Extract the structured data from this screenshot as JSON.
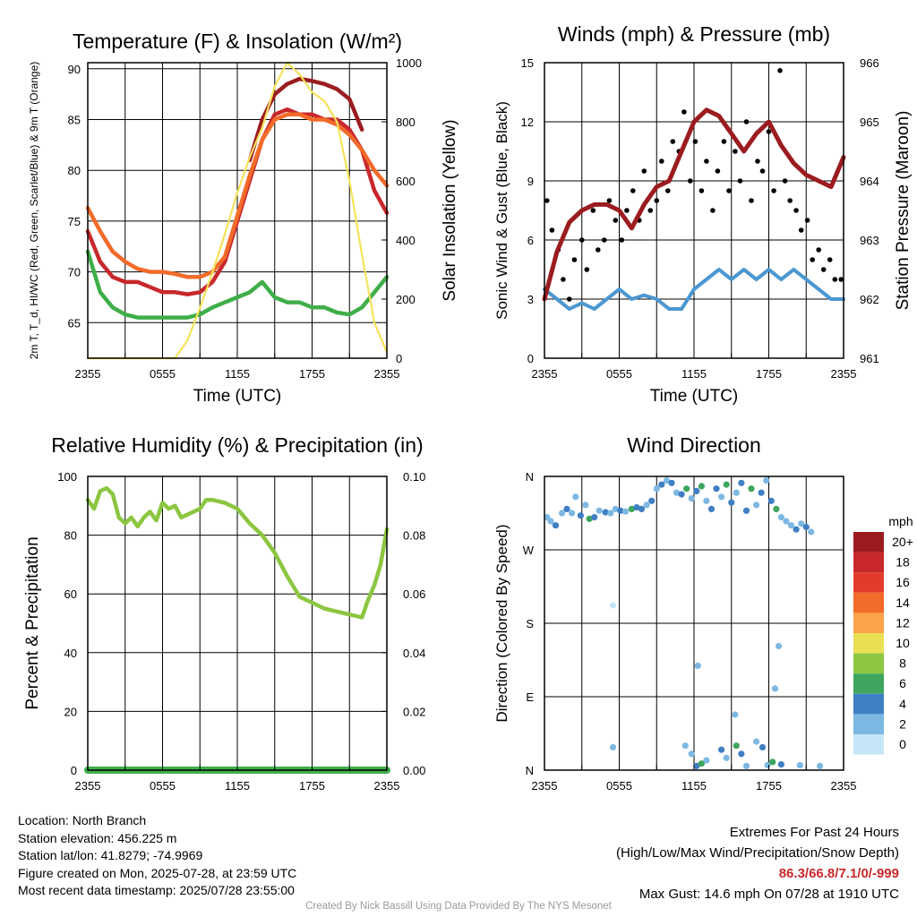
{
  "chart_data": [
    {
      "type": "line",
      "title": "Temperature (F) & Insolation (W/m²)",
      "xlabel": "Time (UTC)",
      "ylabel": "2m T, T_d, HI/WC (Red, Green, Scarlet/Blue) & 9m T (Orange)",
      "y2label": "Solar Insolation (Yellow)",
      "x_ticks": [
        "2355",
        "0555",
        "1155",
        "1755",
        "2355"
      ],
      "ylim": [
        61.5,
        90.6
      ],
      "y_ticks": [
        65,
        70,
        75,
        80,
        85,
        90
      ],
      "y2lim": [
        0,
        1000
      ],
      "y2_ticks": [
        0,
        200,
        400,
        600,
        800,
        1000
      ],
      "grid": true,
      "series": [
        {
          "name": "2m T",
          "color": "#c8282b",
          "axis": "left",
          "x": [
            0,
            1,
            2,
            3,
            4,
            5,
            6,
            7,
            8,
            9,
            10,
            11,
            12,
            13,
            14,
            15,
            16,
            17,
            18,
            19,
            20,
            21,
            22,
            23,
            24
          ],
          "y": [
            74.0,
            71.0,
            69.5,
            69.0,
            69.0,
            68.5,
            68.0,
            68.0,
            67.8,
            68.0,
            69.0,
            71.0,
            75.0,
            79.0,
            83.0,
            85.5,
            86.0,
            85.5,
            85.5,
            85.0,
            85.0,
            84.0,
            82.0,
            78.0,
            75.8
          ]
        },
        {
          "name": "HI/WC",
          "color": "#9b1c1f",
          "axis": "left",
          "x": [
            13,
            14,
            15,
            16,
            17,
            18,
            19,
            20,
            21,
            22
          ],
          "y": [
            81.0,
            85.0,
            87.5,
            88.5,
            89.0,
            88.8,
            88.5,
            88.0,
            87.0,
            84.0
          ]
        },
        {
          "name": "9m T",
          "color": "#f26b2a",
          "axis": "left",
          "x": [
            0,
            1,
            2,
            3,
            4,
            5,
            6,
            7,
            8,
            9,
            10,
            11,
            12,
            13,
            14,
            15,
            16,
            17,
            18,
            19,
            20,
            21,
            22,
            23,
            24
          ],
          "y": [
            76.3,
            74.0,
            72.0,
            71.0,
            70.3,
            70.0,
            70.0,
            69.8,
            69.5,
            69.5,
            70.0,
            71.5,
            75.5,
            79.5,
            83.0,
            85.0,
            85.5,
            85.5,
            85.0,
            85.0,
            84.5,
            83.5,
            82.0,
            80.0,
            78.5
          ]
        },
        {
          "name": "T_d",
          "color": "#3fae49",
          "axis": "left",
          "x": [
            0,
            1,
            2,
            3,
            4,
            5,
            6,
            7,
            8,
            9,
            10,
            11,
            12,
            13,
            14,
            15,
            16,
            17,
            18,
            19,
            20,
            21,
            22,
            23,
            24
          ],
          "y": [
            72.0,
            68.0,
            66.5,
            65.8,
            65.5,
            65.5,
            65.5,
            65.5,
            65.5,
            65.8,
            66.5,
            67.0,
            67.5,
            68.0,
            69.0,
            67.5,
            67.0,
            67.0,
            66.5,
            66.5,
            66.0,
            65.8,
            66.5,
            68.0,
            69.5
          ]
        },
        {
          "name": "Solar Insolation",
          "color": "#f5e25a",
          "axis": "right",
          "x": [
            0,
            7,
            8,
            9,
            10,
            11,
            12,
            13,
            14,
            15,
            16,
            17,
            18,
            19,
            20,
            21,
            22,
            23,
            24
          ],
          "y": [
            0,
            0,
            60,
            170,
            290,
            420,
            560,
            680,
            780,
            920,
            1000,
            960,
            900,
            870,
            800,
            600,
            350,
            120,
            20
          ]
        }
      ]
    },
    {
      "type": "line",
      "title": "Winds (mph) & Pressure (mb)",
      "xlabel": "Time (UTC)",
      "ylabel": "Sonic Wind & Gust (Blue, Black)",
      "y2label": "Station Pressure (Maroon)",
      "x_ticks": [
        "2355",
        "0555",
        "1155",
        "1755",
        "2355"
      ],
      "ylim": [
        0,
        15
      ],
      "y_ticks": [
        0,
        3,
        6,
        9,
        12,
        15
      ],
      "y2lim": [
        961,
        966
      ],
      "y2_ticks": [
        961,
        962,
        963,
        964,
        965,
        966
      ],
      "grid": true,
      "series": [
        {
          "name": "Sonic Wind",
          "color": "#4b97d1",
          "axis": "left",
          "x": [
            0,
            1,
            2,
            3,
            4,
            5,
            6,
            7,
            8,
            9,
            10,
            11,
            12,
            13,
            14,
            15,
            16,
            17,
            18,
            19,
            20,
            21,
            22,
            23,
            24
          ],
          "y": [
            3.5,
            3.0,
            2.5,
            2.8,
            2.5,
            3.0,
            3.5,
            3.0,
            3.2,
            3.0,
            2.5,
            2.5,
            3.5,
            4.0,
            4.5,
            4.0,
            4.5,
            4.0,
            4.5,
            4.0,
            4.5,
            4.0,
            3.5,
            3.0,
            3.0
          ]
        },
        {
          "name": "Gust",
          "color": "#000000",
          "axis": "left",
          "x": [
            0.2,
            0.6,
            1.1,
            1.5,
            2.0,
            2.4,
            3.0,
            3.4,
            3.9,
            4.3,
            4.8,
            5.2,
            5.7,
            6.2,
            6.6,
            7.1,
            7.6,
            8.0,
            8.5,
            9.0,
            9.4,
            9.9,
            10.3,
            10.8,
            11.2,
            11.7,
            12.1,
            12.6,
            13.0,
            13.5,
            13.9,
            14.4,
            14.8,
            15.3,
            15.7,
            16.2,
            16.6,
            17.1,
            17.5,
            18.0,
            18.4,
            18.9,
            19.3,
            19.7,
            20.2,
            20.6,
            21.1,
            21.5,
            22.0,
            22.4,
            22.9,
            23.3,
            23.8
          ],
          "y": [
            8.0,
            6.5,
            5.5,
            4.0,
            3.0,
            5.0,
            6.0,
            4.5,
            7.5,
            5.5,
            6.0,
            8.0,
            7.0,
            6.0,
            7.5,
            8.5,
            7.0,
            9.5,
            7.5,
            8.0,
            10.0,
            8.5,
            11.0,
            10.5,
            12.5,
            9.0,
            11.0,
            8.5,
            10.0,
            7.5,
            9.5,
            11.0,
            8.5,
            10.5,
            9.0,
            12.0,
            8.0,
            10.0,
            9.5,
            11.5,
            8.5,
            14.6,
            9.0,
            8.0,
            7.5,
            6.5,
            7.0,
            5.0,
            5.5,
            4.5,
            5.0,
            4.0,
            4.0
          ]
        },
        {
          "name": "Station Pressure",
          "color": "#9b1c1f",
          "axis": "right",
          "x": [
            0,
            1,
            2,
            3,
            4,
            5,
            6,
            7,
            8,
            9,
            10,
            11,
            12,
            13,
            14,
            15,
            16,
            17,
            18,
            19,
            20,
            21,
            22,
            23,
            24
          ],
          "y": [
            962.0,
            962.8,
            963.3,
            963.5,
            963.6,
            963.6,
            963.5,
            963.2,
            963.6,
            963.9,
            964.0,
            964.5,
            965.0,
            965.2,
            965.1,
            964.8,
            964.5,
            964.8,
            965.0,
            964.6,
            964.3,
            964.1,
            964.0,
            963.9,
            964.4
          ]
        }
      ]
    },
    {
      "type": "line",
      "title": "Relative Humidity (%) & Precipitation (in)",
      "xlabel": "",
      "ylabel": "Percent & Precipitation",
      "x_ticks": [
        "2355",
        "0555",
        "1155",
        "1755",
        "2355"
      ],
      "ylim": [
        0,
        100
      ],
      "y_ticks": [
        0,
        20,
        40,
        60,
        80,
        100
      ],
      "y2lim": [
        0,
        0.1
      ],
      "y2_ticks": [
        "0.00",
        "0.02",
        "0.04",
        "0.06",
        "0.08",
        "0.10"
      ],
      "grid": true,
      "series": [
        {
          "name": "Relative Humidity",
          "color": "#8cc641",
          "axis": "left",
          "x": [
            0,
            0.5,
            1,
            1.5,
            2,
            2.5,
            3,
            3.5,
            4,
            4.5,
            5,
            5.5,
            6,
            6.5,
            7,
            7.5,
            8,
            8.5,
            9,
            9.5,
            10,
            11,
            12,
            13,
            14,
            15,
            16,
            17,
            18,
            19,
            20,
            21,
            22,
            22.5,
            23,
            23.5,
            24
          ],
          "y": [
            92,
            89,
            95,
            96,
            94,
            86,
            84,
            86,
            83,
            86,
            88,
            85,
            91,
            89,
            90,
            86,
            87,
            88,
            89,
            92,
            92,
            91,
            89,
            84,
            80,
            74,
            66,
            59,
            57,
            55,
            54,
            53,
            52,
            58,
            63,
            70,
            82
          ]
        },
        {
          "name": "Precipitation",
          "color": "#3fae49",
          "axis": "right",
          "x": [
            0,
            24
          ],
          "y": [
            0,
            0
          ]
        }
      ]
    },
    {
      "type": "scatter",
      "title": "Wind Direction",
      "ylabel": "Direction (Colored By Speed)",
      "x_ticks": [
        "2355",
        "0555",
        "1155",
        "1755",
        "2355"
      ],
      "y_ticks": [
        "N",
        "E",
        "S",
        "W",
        "N"
      ],
      "ylim": [
        0,
        360
      ],
      "grid": true,
      "legend": {
        "title": "mph",
        "labels": [
          "20+",
          "18",
          "16",
          "14",
          "12",
          "10",
          "8",
          "6",
          "4",
          "2",
          "0"
        ],
        "colors": [
          "#9b1c1f",
          "#c8282b",
          "#e33b2b",
          "#f26b2a",
          "#fba44a",
          "#e8e052",
          "#8cc641",
          "#3fa55e",
          "#3f7fc4",
          "#7db8e3",
          "#c5e6f8"
        ],
        "placement": "right"
      },
      "points": [
        [
          0.2,
          310,
          3
        ],
        [
          0.5,
          305,
          3
        ],
        [
          0.9,
          300,
          4
        ],
        [
          1.4,
          315,
          2
        ],
        [
          1.8,
          320,
          4
        ],
        [
          2.2,
          315,
          3
        ],
        [
          2.5,
          335,
          2
        ],
        [
          2.9,
          312,
          4
        ],
        [
          3.3,
          325,
          3
        ],
        [
          3.6,
          308,
          6
        ],
        [
          4.0,
          310,
          4
        ],
        [
          4.4,
          318,
          3
        ],
        [
          4.9,
          316,
          4
        ],
        [
          5.3,
          315,
          3
        ],
        [
          5.7,
          320,
          2
        ],
        [
          6.1,
          318,
          4
        ],
        [
          6.5,
          317,
          3
        ],
        [
          7.0,
          320,
          6
        ],
        [
          7.4,
          322,
          4
        ],
        [
          7.8,
          320,
          5
        ],
        [
          8.2,
          325,
          3
        ],
        [
          8.6,
          330,
          4
        ],
        [
          9.0,
          345,
          3
        ],
        [
          9.4,
          350,
          4
        ],
        [
          9.8,
          355,
          2
        ],
        [
          10.2,
          352,
          5
        ],
        [
          10.6,
          340,
          3
        ],
        [
          11.0,
          338,
          4
        ],
        [
          11.4,
          345,
          6
        ],
        [
          11.8,
          333,
          3
        ],
        [
          12.2,
          342,
          4
        ],
        [
          12.6,
          348,
          6
        ],
        [
          13.0,
          330,
          3
        ],
        [
          13.4,
          320,
          5
        ],
        [
          13.8,
          345,
          4
        ],
        [
          14.2,
          335,
          3
        ],
        [
          14.6,
          350,
          6
        ],
        [
          15.0,
          328,
          4
        ],
        [
          15.4,
          340,
          3
        ],
        [
          15.8,
          352,
          5
        ],
        [
          16.2,
          318,
          4
        ],
        [
          16.6,
          345,
          6
        ],
        [
          17.0,
          325,
          3
        ],
        [
          17.4,
          340,
          4
        ],
        [
          17.8,
          355,
          2
        ],
        [
          18.2,
          330,
          4
        ],
        [
          18.6,
          320,
          6
        ],
        [
          19.0,
          310,
          3
        ],
        [
          19.4,
          305,
          2
        ],
        [
          19.8,
          300,
          3
        ],
        [
          20.2,
          295,
          4
        ],
        [
          20.6,
          302,
          3
        ],
        [
          21.0,
          298,
          4
        ],
        [
          21.4,
          292,
          2
        ],
        [
          5.5,
          202,
          1
        ],
        [
          18.5,
          100,
          3
        ],
        [
          18.8,
          152,
          2
        ],
        [
          12.3,
          128,
          2
        ],
        [
          15.3,
          68,
          2
        ],
        [
          5.5,
          28,
          3
        ],
        [
          11.3,
          30,
          2
        ],
        [
          11.8,
          20,
          3
        ],
        [
          12.2,
          5,
          4
        ],
        [
          12.6,
          8,
          6
        ],
        [
          13.0,
          12,
          2
        ],
        [
          14.2,
          25,
          4
        ],
        [
          14.6,
          15,
          2
        ],
        [
          15.4,
          30,
          6
        ],
        [
          15.8,
          20,
          4
        ],
        [
          16.2,
          5,
          2
        ],
        [
          17.0,
          35,
          3
        ],
        [
          17.5,
          28,
          4
        ],
        [
          17.9,
          6,
          3
        ],
        [
          18.3,
          10,
          6
        ],
        [
          19.0,
          7,
          4
        ],
        [
          20.5,
          6,
          2
        ],
        [
          22.1,
          5,
          3
        ]
      ]
    }
  ],
  "info": {
    "location": "Location: North Branch",
    "elevation": "Station elevation: 456.225 m",
    "latlon": "Station lat/lon: 41.8279; -74.9969",
    "created": "Figure created on Mon, 2025-07-28, at 23:59 UTC",
    "recent": "Most recent data timestamp: 2025/07/28 23:55:00"
  },
  "extremes": {
    "heading": "Extremes For Past 24 Hours",
    "subheading": "(High/Low/Max Wind/Precipitation/Snow Depth)",
    "values": "86.3/66.8/7.1/0/-999",
    "max_gust": "Max Gust: 14.6 mph On 07/28 at 1910 UTC"
  },
  "credit": "Created By Nick Bassill Using Data Provided By The NYS Mesonet"
}
